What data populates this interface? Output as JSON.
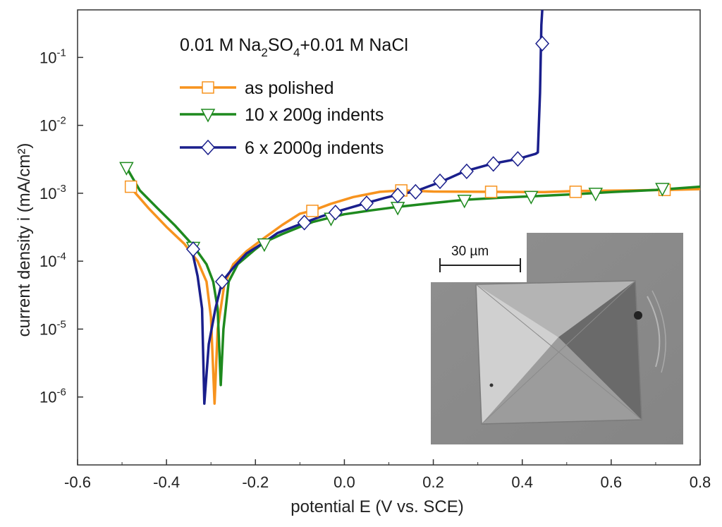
{
  "chart_data": {
    "type": "line",
    "title": "0.01 M Na2SO4+0.01 M NaCl",
    "title_parts": {
      "a": "0.01 M Na",
      "sub1": "2",
      "b": "SO",
      "sub2": "4",
      "c": "+0.01 M NaCl"
    },
    "xlabel": "potential E (V vs. SCE)",
    "ylabel": "current density i (mA/cm²)",
    "xlim": [
      -0.6,
      0.8
    ],
    "ylim_log10": [
      -7,
      -0.3
    ],
    "xticks": [
      -0.6,
      -0.4,
      -0.2,
      0.0,
      0.2,
      0.4,
      0.6,
      0.8
    ],
    "xtick_labels": [
      "-0.6",
      "-0.4",
      "-0.2",
      "0.0",
      "0.2",
      "0.4",
      "0.6",
      "0.8"
    ],
    "yticks_log10": [
      -6,
      -5,
      -4,
      -3,
      -2,
      -1
    ],
    "ytick_labels": [
      {
        "base": "10",
        "exp": "-6"
      },
      {
        "base": "10",
        "exp": "-5"
      },
      {
        "base": "10",
        "exp": "-4"
      },
      {
        "base": "10",
        "exp": "-3"
      },
      {
        "base": "10",
        "exp": "-2"
      },
      {
        "base": "10",
        "exp": "-1"
      }
    ],
    "legend_position": "top-left",
    "series": [
      {
        "name": "as polished",
        "color": "#f7931e",
        "marker": "square",
        "curve": [
          [
            -0.48,
            0.0012
          ],
          [
            -0.44,
            0.0006
          ],
          [
            -0.4,
            0.00032
          ],
          [
            -0.36,
            0.00018
          ],
          [
            -0.33,
            0.0001
          ],
          [
            -0.31,
            5e-05
          ],
          [
            -0.3,
            1.5e-05
          ],
          [
            -0.292,
            8e-07
          ],
          [
            -0.285,
            1e-05
          ],
          [
            -0.27,
            4.5e-05
          ],
          [
            -0.25,
            9e-05
          ],
          [
            -0.22,
            0.00014
          ],
          [
            -0.18,
            0.00022
          ],
          [
            -0.14,
            0.00034
          ],
          [
            -0.1,
            0.0005
          ],
          [
            -0.07,
            0.00056
          ],
          [
            -0.03,
            0.0007
          ],
          [
            0.02,
            0.00088
          ],
          [
            0.08,
            0.00105
          ],
          [
            0.13,
            0.0011
          ],
          [
            0.2,
            0.00106
          ],
          [
            0.33,
            0.00105
          ],
          [
            0.45,
            0.00104
          ],
          [
            0.52,
            0.00108
          ],
          [
            0.65,
            0.0011
          ],
          [
            0.72,
            0.00112
          ],
          [
            0.8,
            0.00115
          ]
        ],
        "markers": [
          [
            -0.48,
            0.00125
          ],
          [
            -0.072,
            0.00055
          ],
          [
            0.128,
            0.0011
          ],
          [
            0.33,
            0.00105
          ],
          [
            0.52,
            0.00105
          ],
          [
            0.72,
            0.00112
          ]
        ]
      },
      {
        "name": "10 x   200g indents",
        "color": "#1e8a1e",
        "marker": "triangle-down",
        "curve": [
          [
            -0.49,
            0.0024
          ],
          [
            -0.46,
            0.0011
          ],
          [
            -0.42,
            0.0006
          ],
          [
            -0.38,
            0.00033
          ],
          [
            -0.34,
            0.00017
          ],
          [
            -0.31,
            9e-05
          ],
          [
            -0.295,
            5e-05
          ],
          [
            -0.285,
            2e-05
          ],
          [
            -0.278,
            1.5e-06
          ],
          [
            -0.272,
            1e-05
          ],
          [
            -0.26,
            5e-05
          ],
          [
            -0.24,
            9e-05
          ],
          [
            -0.2,
            0.00015
          ],
          [
            -0.18,
            0.00019
          ],
          [
            -0.14,
            0.00025
          ],
          [
            -0.1,
            0.00032
          ],
          [
            -0.07,
            0.00038
          ],
          [
            -0.03,
            0.00044
          ],
          [
            0.0,
            0.00049
          ],
          [
            0.06,
            0.00056
          ],
          [
            0.12,
            0.00063
          ],
          [
            0.2,
            0.00072
          ],
          [
            0.27,
            0.0008
          ],
          [
            0.35,
            0.00086
          ],
          [
            0.42,
            0.0009
          ],
          [
            0.52,
            0.00097
          ],
          [
            0.6,
            0.00104
          ],
          [
            0.7,
            0.00112
          ],
          [
            0.8,
            0.00125
          ]
        ],
        "markers": [
          [
            -0.49,
            0.0024
          ],
          [
            -0.34,
            0.00016
          ],
          [
            -0.18,
            0.00018
          ],
          [
            -0.03,
            0.00043
          ],
          [
            0.12,
            0.00062
          ],
          [
            0.27,
            0.00079
          ],
          [
            0.42,
            0.0009
          ],
          [
            0.565,
            0.001
          ],
          [
            0.715,
            0.00118
          ]
        ]
      },
      {
        "name": "6 x 2000g indents",
        "color": "#1a1f8c",
        "marker": "diamond",
        "curve": [
          [
            -0.35,
            0.00015
          ],
          [
            -0.34,
            0.00012
          ],
          [
            -0.33,
            6e-05
          ],
          [
            -0.32,
            2e-05
          ],
          [
            -0.315,
            8e-07
          ],
          [
            -0.305,
            6e-06
          ],
          [
            -0.29,
            2e-05
          ],
          [
            -0.275,
            5e-05
          ],
          [
            -0.25,
            8e-05
          ],
          [
            -0.22,
            0.00013
          ],
          [
            -0.18,
            0.00019
          ],
          [
            -0.15,
            0.00026
          ],
          [
            -0.12,
            0.00031
          ],
          [
            -0.09,
            0.00037
          ],
          [
            -0.05,
            0.00046
          ],
          [
            -0.02,
            0.00053
          ],
          [
            0.02,
            0.00063
          ],
          [
            0.05,
            0.00072
          ],
          [
            0.09,
            0.00085
          ],
          [
            0.12,
            0.00095
          ],
          [
            0.16,
            0.00107
          ],
          [
            0.22,
            0.0015
          ],
          [
            0.27,
            0.0021
          ],
          [
            0.33,
            0.0027
          ],
          [
            0.39,
            0.0032
          ],
          [
            0.43,
            0.0038
          ],
          [
            0.435,
            0.004
          ],
          [
            0.44,
            0.03
          ],
          [
            0.443,
            0.3
          ],
          [
            0.445,
            0.5
          ]
        ],
        "markers": [
          [
            -0.34,
            0.00015
          ],
          [
            -0.275,
            5e-05
          ],
          [
            -0.09,
            0.00037
          ],
          [
            -0.02,
            0.00052
          ],
          [
            0.05,
            0.00071
          ],
          [
            0.12,
            0.00093
          ],
          [
            0.16,
            0.00105
          ],
          [
            0.215,
            0.0015
          ],
          [
            0.275,
            0.0021
          ],
          [
            0.335,
            0.0027
          ],
          [
            0.39,
            0.0032
          ],
          [
            0.445,
            0.16
          ]
        ]
      }
    ],
    "inset": {
      "description_label": "SEM micrograph of Vickers indent",
      "scale_bar_label": "30 µm"
    }
  }
}
